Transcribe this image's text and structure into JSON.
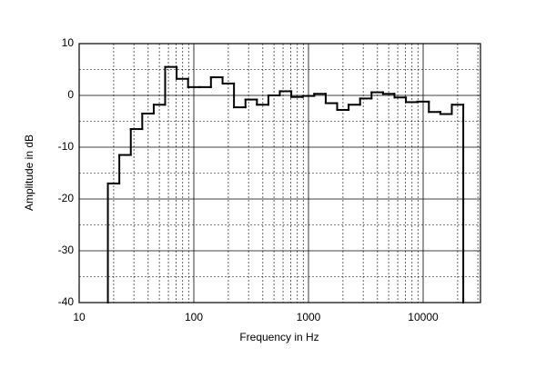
{
  "chart_data": {
    "type": "histogram",
    "xlabel": "Frequency in Hz",
    "ylabel": "Amplitude in dB",
    "bins": [
      17.8,
      22.4,
      28.2,
      35.5,
      44.7,
      56.2,
      70.8,
      89.1,
      112,
      141,
      178,
      224,
      282,
      355,
      447,
      562,
      708,
      891,
      1122,
      1413,
      1778,
      2239,
      2818,
      3548,
      4467,
      5623,
      7079,
      8913,
      11220,
      14125,
      17783,
      22387
    ],
    "values": [
      -17,
      -11.5,
      -6.5,
      -3.5,
      -1.8,
      5.5,
      3.2,
      1.6,
      1.6,
      3.5,
      2.3,
      -2.3,
      -0.8,
      -1.8,
      0,
      0.8,
      -0.3,
      -0.1,
      0.3,
      -1.5,
      -2.8,
      -1.8,
      -0.6,
      0.6,
      0.3,
      -0.4,
      -1.3,
      -1.2,
      -3.2,
      -3.6,
      -1.8
    ],
    "color": "#000000",
    "xlim": [
      10,
      31623
    ],
    "xticks": [
      10,
      100,
      1000,
      10000
    ],
    "xscale": "log",
    "ylim": [
      -40,
      10
    ],
    "yticks": [
      -40,
      -30,
      -20,
      -10,
      0,
      10
    ],
    "grid": true
  }
}
